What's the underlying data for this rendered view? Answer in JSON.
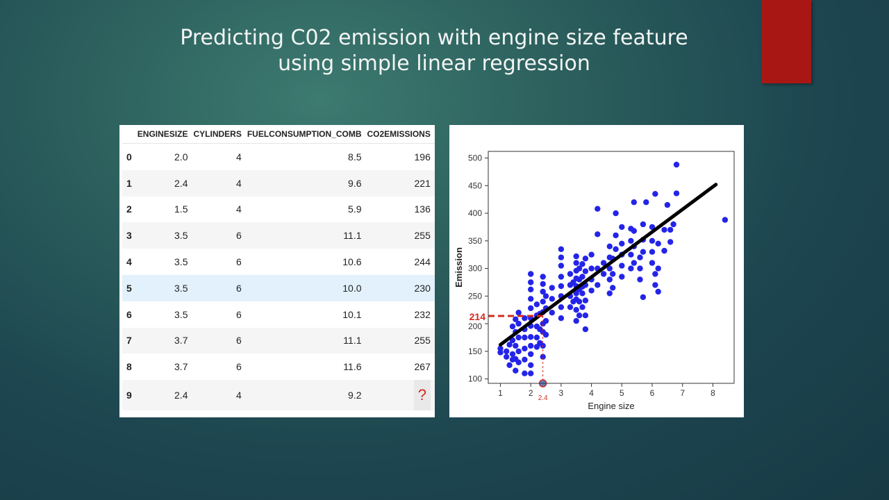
{
  "slide": {
    "title_line1": "Predicting C02 emission with engine size feature",
    "title_line2": "using simple linear regression",
    "accent_color": "#a81714"
  },
  "table": {
    "columns": [
      "",
      "ENGINESIZE",
      "CYLINDERS",
      "FUELCONSUMPTION_COMB",
      "CO2EMISSIONS"
    ],
    "rows": [
      {
        "index": "0",
        "enginesize": "2.0",
        "cylinders": "4",
        "fuel": "8.5",
        "co2": "196"
      },
      {
        "index": "1",
        "enginesize": "2.4",
        "cylinders": "4",
        "fuel": "9.6",
        "co2": "221"
      },
      {
        "index": "2",
        "enginesize": "1.5",
        "cylinders": "4",
        "fuel": "5.9",
        "co2": "136"
      },
      {
        "index": "3",
        "enginesize": "3.5",
        "cylinders": "6",
        "fuel": "11.1",
        "co2": "255"
      },
      {
        "index": "4",
        "enginesize": "3.5",
        "cylinders": "6",
        "fuel": "10.6",
        "co2": "244"
      },
      {
        "index": "5",
        "enginesize": "3.5",
        "cylinders": "6",
        "fuel": "10.0",
        "co2": "230"
      },
      {
        "index": "6",
        "enginesize": "3.5",
        "cylinders": "6",
        "fuel": "10.1",
        "co2": "232"
      },
      {
        "index": "7",
        "enginesize": "3.7",
        "cylinders": "6",
        "fuel": "11.1",
        "co2": "255"
      },
      {
        "index": "8",
        "enginesize": "3.7",
        "cylinders": "6",
        "fuel": "11.6",
        "co2": "267"
      },
      {
        "index": "9",
        "enginesize": "2.4",
        "cylinders": "4",
        "fuel": "9.2",
        "co2": "?"
      }
    ],
    "highlight_row": 5,
    "highlight_color": "#e2f1fb"
  },
  "chart_data": {
    "type": "scatter",
    "title": "",
    "xlabel": "Engine size",
    "ylabel": "Emission",
    "xlim": [
      0.6,
      8.7
    ],
    "ylim": [
      92,
      512
    ],
    "xticks": [
      1,
      2,
      3,
      4,
      5,
      6,
      7,
      8
    ],
    "yticks": [
      100,
      150,
      200,
      250,
      300,
      350,
      400,
      450,
      500
    ],
    "grid": false,
    "point_color": "#2424e8",
    "points": [
      [
        1.0,
        148
      ],
      [
        1.0,
        155
      ],
      [
        1.2,
        140
      ],
      [
        1.2,
        150
      ],
      [
        1.3,
        125
      ],
      [
        1.3,
        162
      ],
      [
        1.4,
        135
      ],
      [
        1.4,
        145
      ],
      [
        1.4,
        170
      ],
      [
        1.4,
        195
      ],
      [
        1.5,
        115
      ],
      [
        1.5,
        136
      ],
      [
        1.5,
        160
      ],
      [
        1.5,
        185
      ],
      [
        1.5,
        208
      ],
      [
        1.6,
        130
      ],
      [
        1.6,
        150
      ],
      [
        1.6,
        175
      ],
      [
        1.6,
        200
      ],
      [
        1.6,
        220
      ],
      [
        1.8,
        110
      ],
      [
        1.8,
        135
      ],
      [
        1.8,
        155
      ],
      [
        1.8,
        175
      ],
      [
        1.8,
        190
      ],
      [
        1.8,
        210
      ],
      [
        2.0,
        110
      ],
      [
        2.0,
        125
      ],
      [
        2.0,
        145
      ],
      [
        2.0,
        160
      ],
      [
        2.0,
        176
      ],
      [
        2.0,
        196
      ],
      [
        2.0,
        210
      ],
      [
        2.0,
        228
      ],
      [
        2.0,
        245
      ],
      [
        2.0,
        262
      ],
      [
        2.0,
        275
      ],
      [
        2.0,
        290
      ],
      [
        2.2,
        158
      ],
      [
        2.2,
        175
      ],
      [
        2.2,
        195
      ],
      [
        2.2,
        215
      ],
      [
        2.2,
        235
      ],
      [
        2.3,
        165
      ],
      [
        2.3,
        190
      ],
      [
        2.3,
        218
      ],
      [
        2.4,
        140
      ],
      [
        2.4,
        160
      ],
      [
        2.4,
        185
      ],
      [
        2.4,
        200
      ],
      [
        2.4,
        221
      ],
      [
        2.4,
        240
      ],
      [
        2.4,
        258
      ],
      [
        2.4,
        272
      ],
      [
        2.4,
        285
      ],
      [
        2.5,
        180
      ],
      [
        2.5,
        205
      ],
      [
        2.5,
        228
      ],
      [
        2.5,
        250
      ],
      [
        2.7,
        220
      ],
      [
        2.7,
        245
      ],
      [
        2.7,
        265
      ],
      [
        3.0,
        210
      ],
      [
        3.0,
        230
      ],
      [
        3.0,
        250
      ],
      [
        3.0,
        268
      ],
      [
        3.0,
        285
      ],
      [
        3.0,
        305
      ],
      [
        3.0,
        320
      ],
      [
        3.0,
        335
      ],
      [
        3.3,
        230
      ],
      [
        3.3,
        250
      ],
      [
        3.3,
        270
      ],
      [
        3.3,
        290
      ],
      [
        3.4,
        240
      ],
      [
        3.4,
        275
      ],
      [
        3.5,
        205
      ],
      [
        3.5,
        225
      ],
      [
        3.5,
        244
      ],
      [
        3.5,
        255
      ],
      [
        3.5,
        268
      ],
      [
        3.5,
        282
      ],
      [
        3.5,
        296
      ],
      [
        3.5,
        310
      ],
      [
        3.5,
        322
      ],
      [
        3.6,
        215
      ],
      [
        3.6,
        240
      ],
      [
        3.6,
        262
      ],
      [
        3.6,
        280
      ],
      [
        3.6,
        300
      ],
      [
        3.7,
        230
      ],
      [
        3.7,
        255
      ],
      [
        3.7,
        267
      ],
      [
        3.7,
        285
      ],
      [
        3.7,
        308
      ],
      [
        3.8,
        190
      ],
      [
        3.8,
        215
      ],
      [
        3.8,
        242
      ],
      [
        3.8,
        270
      ],
      [
        3.8,
        295
      ],
      [
        3.8,
        318
      ],
      [
        4.0,
        260
      ],
      [
        4.0,
        280
      ],
      [
        4.0,
        300
      ],
      [
        4.0,
        325
      ],
      [
        4.2,
        270
      ],
      [
        4.2,
        300
      ],
      [
        4.4,
        290
      ],
      [
        4.4,
        310
      ],
      [
        4.6,
        255
      ],
      [
        4.6,
        280
      ],
      [
        4.6,
        300
      ],
      [
        4.6,
        320
      ],
      [
        4.6,
        340
      ],
      [
        4.7,
        265
      ],
      [
        4.7,
        290
      ],
      [
        4.7,
        318
      ],
      [
        4.8,
        335
      ],
      [
        4.8,
        360
      ],
      [
        5.0,
        285
      ],
      [
        5.0,
        305
      ],
      [
        5.0,
        325
      ],
      [
        5.0,
        345
      ],
      [
        5.0,
        375
      ],
      [
        5.3,
        300
      ],
      [
        5.3,
        325
      ],
      [
        5.3,
        350
      ],
      [
        5.3,
        372
      ],
      [
        5.4,
        310
      ],
      [
        5.4,
        340
      ],
      [
        5.4,
        368
      ],
      [
        5.6,
        280
      ],
      [
        5.6,
        300
      ],
      [
        5.6,
        320
      ],
      [
        5.7,
        330
      ],
      [
        5.7,
        352
      ],
      [
        5.7,
        380
      ],
      [
        5.7,
        248
      ],
      [
        6.0,
        310
      ],
      [
        6.0,
        330
      ],
      [
        6.0,
        350
      ],
      [
        6.0,
        375
      ],
      [
        6.1,
        270
      ],
      [
        6.1,
        290
      ],
      [
        6.2,
        258
      ],
      [
        6.2,
        300
      ],
      [
        6.2,
        345
      ],
      [
        6.4,
        332
      ],
      [
        6.4,
        370
      ],
      [
        6.6,
        348
      ],
      [
        6.6,
        370
      ],
      [
        6.8,
        436
      ],
      [
        6.8,
        488
      ],
      [
        6.7,
        380
      ],
      [
        4.2,
        362
      ],
      [
        4.2,
        408
      ],
      [
        4.8,
        400
      ],
      [
        5.4,
        420
      ],
      [
        5.8,
        420
      ],
      [
        6.1,
        435
      ],
      [
        6.5,
        415
      ],
      [
        8.4,
        388
      ]
    ],
    "regression_line": {
      "x": [
        1.0,
        8.1
      ],
      "y": [
        162,
        452
      ],
      "color": "#000000"
    },
    "prediction": {
      "x": 2.4,
      "y": 214,
      "x_label": "2.4",
      "y_label": "214",
      "color": "#d42a1e"
    }
  }
}
